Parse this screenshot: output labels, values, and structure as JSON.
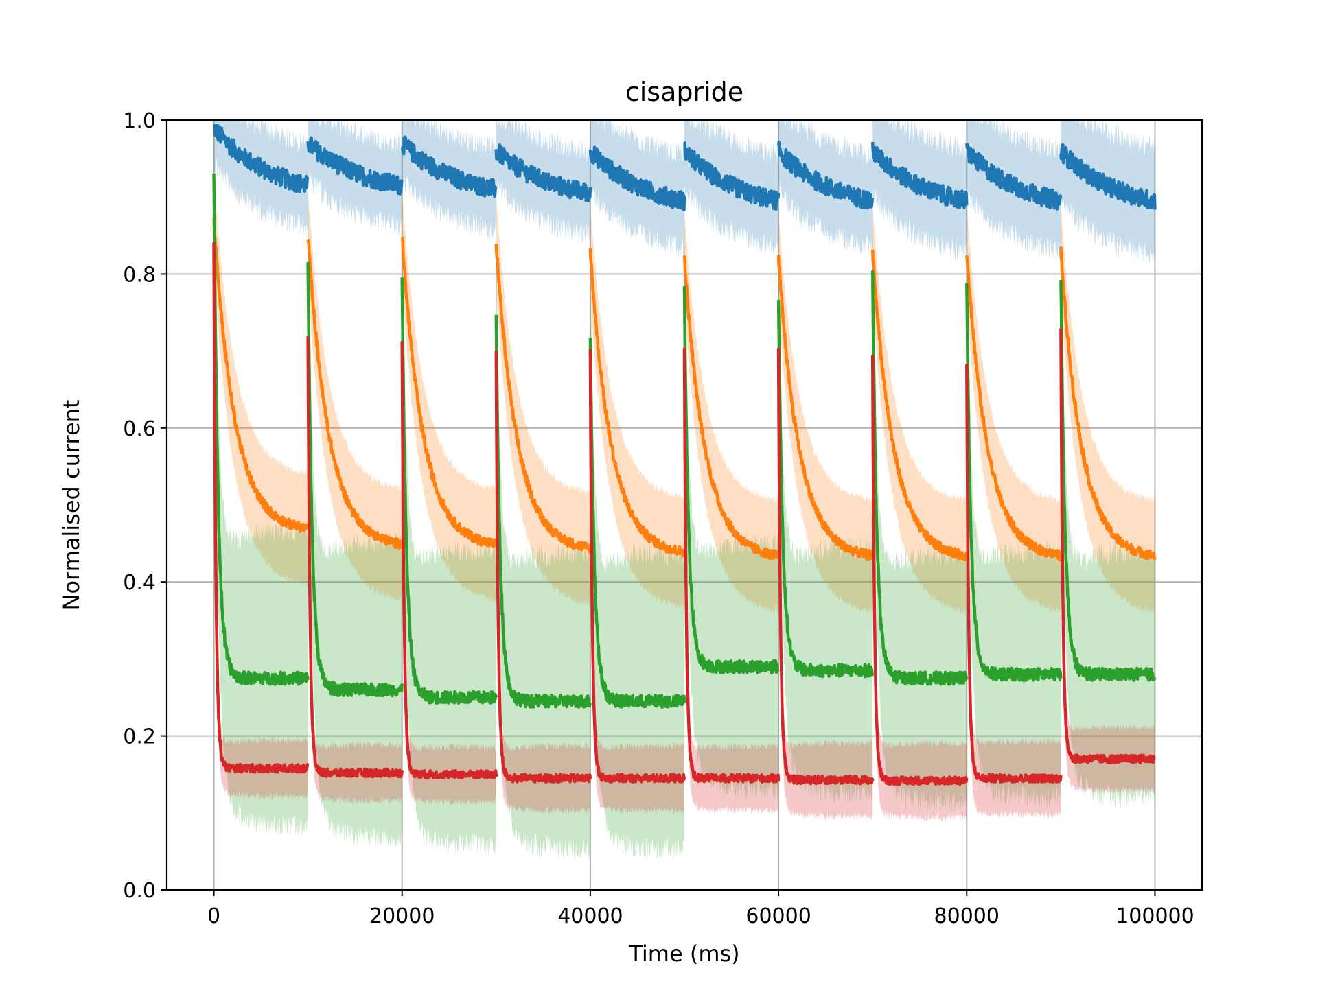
{
  "chart_data": {
    "type": "line",
    "title": "cisapride",
    "xlabel": "Time (ms)",
    "ylabel": "Normalised current",
    "xlim": [
      -5000,
      105000
    ],
    "ylim": [
      0.0,
      1.0
    ],
    "grid": true,
    "xticks": [
      0,
      20000,
      40000,
      60000,
      80000,
      100000
    ],
    "xtick_labels": [
      "0",
      "20000",
      "40000",
      "60000",
      "80000",
      "100000"
    ],
    "yticks": [
      0.0,
      0.2,
      0.4,
      0.6,
      0.8,
      1.0
    ],
    "ytick_labels": [
      "0.0",
      "0.2",
      "0.4",
      "0.6",
      "0.8",
      "1.0"
    ],
    "sweep_period_ms": 10000,
    "sweep_count": 10,
    "series": [
      {
        "color": "#1f77b4",
        "band_color": "#1f77b4",
        "sweeps": [
          {
            "start": 0.99,
            "end": 0.915,
            "band": 0.045
          },
          {
            "start": 0.97,
            "end": 0.915,
            "band": 0.045
          },
          {
            "start": 0.97,
            "end": 0.91,
            "band": 0.045
          },
          {
            "start": 0.96,
            "end": 0.905,
            "band": 0.045
          },
          {
            "start": 0.96,
            "end": 0.895,
            "band": 0.05
          },
          {
            "start": 0.96,
            "end": 0.895,
            "band": 0.05
          },
          {
            "start": 0.96,
            "end": 0.895,
            "band": 0.05
          },
          {
            "start": 0.96,
            "end": 0.895,
            "band": 0.055
          },
          {
            "start": 0.96,
            "end": 0.895,
            "band": 0.055
          },
          {
            "start": 0.96,
            "end": 0.895,
            "band": 0.06
          }
        ]
      },
      {
        "color": "#ff7f0e",
        "band_color": "#ff7f0e",
        "sweeps": [
          {
            "start": 0.87,
            "end": 0.465,
            "band": 0.06
          },
          {
            "start": 0.85,
            "end": 0.445,
            "band": 0.06
          },
          {
            "start": 0.85,
            "end": 0.445,
            "band": 0.06
          },
          {
            "start": 0.84,
            "end": 0.44,
            "band": 0.06
          },
          {
            "start": 0.83,
            "end": 0.435,
            "band": 0.06
          },
          {
            "start": 0.82,
            "end": 0.43,
            "band": 0.06
          },
          {
            "start": 0.82,
            "end": 0.43,
            "band": 0.06
          },
          {
            "start": 0.83,
            "end": 0.43,
            "band": 0.06
          },
          {
            "start": 0.83,
            "end": 0.43,
            "band": 0.06
          },
          {
            "start": 0.83,
            "end": 0.43,
            "band": 0.06
          }
        ]
      },
      {
        "color": "#2ca02c",
        "band_color": "#2ca02c",
        "sweeps": [
          {
            "start": 0.93,
            "end": 0.275,
            "band": 0.12
          },
          {
            "start": 0.81,
            "end": 0.26,
            "band": 0.12
          },
          {
            "start": 0.8,
            "end": 0.25,
            "band": 0.12
          },
          {
            "start": 0.74,
            "end": 0.245,
            "band": 0.12
          },
          {
            "start": 0.72,
            "end": 0.245,
            "band": 0.12
          },
          {
            "start": 0.78,
            "end": 0.29,
            "band": 0.1
          },
          {
            "start": 0.77,
            "end": 0.285,
            "band": 0.1
          },
          {
            "start": 0.8,
            "end": 0.275,
            "band": 0.1
          },
          {
            "start": 0.79,
            "end": 0.28,
            "band": 0.1
          },
          {
            "start": 0.8,
            "end": 0.28,
            "band": 0.1
          }
        ]
      },
      {
        "color": "#d62728",
        "band_color": "#d62728",
        "sweeps": [
          {
            "start": 0.84,
            "end": 0.158,
            "band": 0.03
          },
          {
            "start": 0.72,
            "end": 0.152,
            "band": 0.03
          },
          {
            "start": 0.71,
            "end": 0.15,
            "band": 0.03
          },
          {
            "start": 0.7,
            "end": 0.145,
            "band": 0.035
          },
          {
            "start": 0.7,
            "end": 0.145,
            "band": 0.035
          },
          {
            "start": 0.7,
            "end": 0.145,
            "band": 0.035
          },
          {
            "start": 0.7,
            "end": 0.143,
            "band": 0.04
          },
          {
            "start": 0.69,
            "end": 0.142,
            "band": 0.04
          },
          {
            "start": 0.68,
            "end": 0.145,
            "band": 0.04
          },
          {
            "start": 0.73,
            "end": 0.17,
            "band": 0.035
          }
        ]
      }
    ]
  }
}
